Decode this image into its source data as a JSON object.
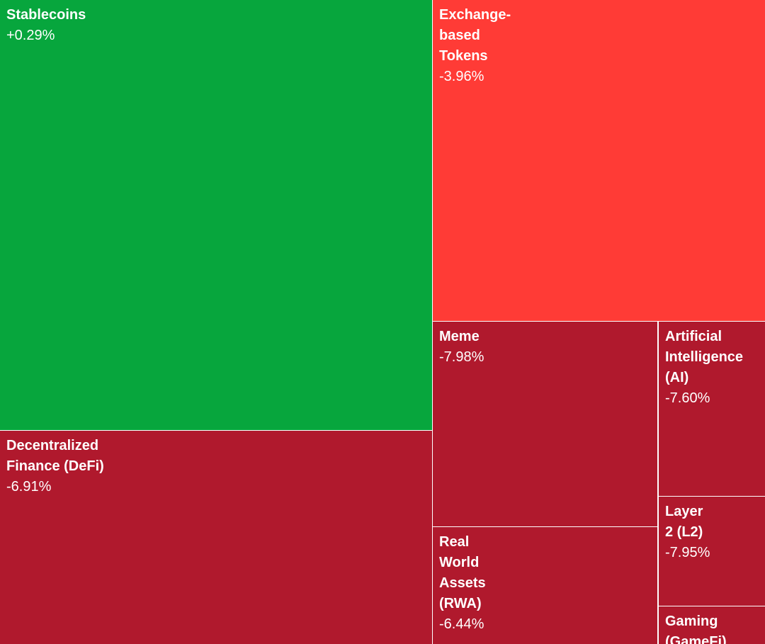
{
  "tiles": [
    {
      "label": "Stablecoins",
      "change": "+0.29%"
    },
    {
      "label": "Exchange-based Tokens",
      "change": "-3.96%"
    },
    {
      "label": "Decentralized Finance (DeFi)",
      "change": "-6.91%"
    },
    {
      "label": "Meme",
      "change": "-7.98%"
    },
    {
      "label": "Real World Assets (RWA)",
      "change": "-6.44%"
    },
    {
      "label": "Artificial Intelligence (AI)",
      "change": "-7.60%"
    },
    {
      "label": "Layer 2 (L2)",
      "change": "-7.95%"
    },
    {
      "label": "Gaming (GameFi)",
      "change": ""
    }
  ]
}
